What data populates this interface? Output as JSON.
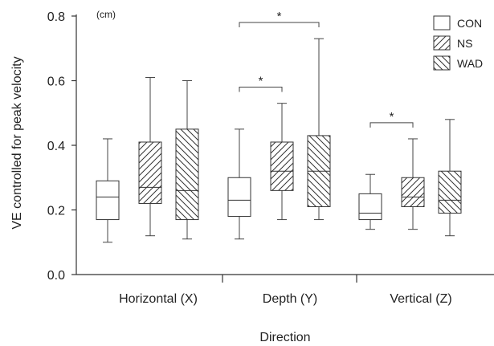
{
  "chart_data": {
    "type": "box",
    "title": "",
    "unit_label": "(cm)",
    "xlabel": "Direction",
    "ylabel": "VE controlled for peak velocity",
    "ylim": [
      0.0,
      0.8
    ],
    "yticks": [
      "0.0",
      "0.2",
      "0.4",
      "0.6",
      "0.8"
    ],
    "grid": false,
    "legend_position": "top-right",
    "categories": [
      "Horizontal (X)",
      "Depth (Y)",
      "Vertical (Z)"
    ],
    "series": [
      {
        "name": "CON",
        "pattern": "none",
        "boxes": [
          {
            "min": 0.1,
            "q1": 0.17,
            "median": 0.24,
            "q3": 0.29,
            "max": 0.42
          },
          {
            "min": 0.11,
            "q1": 0.18,
            "median": 0.23,
            "q3": 0.3,
            "max": 0.45
          },
          {
            "min": 0.14,
            "q1": 0.17,
            "median": 0.19,
            "q3": 0.25,
            "max": 0.31
          }
        ]
      },
      {
        "name": "NS",
        "pattern": "forward-hatch",
        "boxes": [
          {
            "min": 0.12,
            "q1": 0.22,
            "median": 0.27,
            "q3": 0.41,
            "max": 0.61
          },
          {
            "min": 0.17,
            "q1": 0.26,
            "median": 0.32,
            "q3": 0.41,
            "max": 0.53
          },
          {
            "min": 0.14,
            "q1": 0.21,
            "median": 0.24,
            "q3": 0.3,
            "max": 0.42
          }
        ]
      },
      {
        "name": "WAD",
        "pattern": "back-hatch",
        "boxes": [
          {
            "min": 0.11,
            "q1": 0.17,
            "median": 0.26,
            "q3": 0.45,
            "max": 0.6
          },
          {
            "min": 0.17,
            "q1": 0.21,
            "median": 0.32,
            "q3": 0.43,
            "max": 0.73
          },
          {
            "min": 0.12,
            "q1": 0.19,
            "median": 0.23,
            "q3": 0.32,
            "max": 0.48
          }
        ]
      }
    ],
    "annotations": [
      {
        "text": "*",
        "category_index": 1,
        "from_series": 0,
        "to_series": 1,
        "y": 0.58
      },
      {
        "text": "*",
        "category_index": 1,
        "from_series": 0,
        "to_series": 2,
        "y": 0.78
      },
      {
        "text": "*",
        "category_index": 2,
        "from_series": 0,
        "to_series": 1,
        "y": 0.47
      }
    ]
  }
}
